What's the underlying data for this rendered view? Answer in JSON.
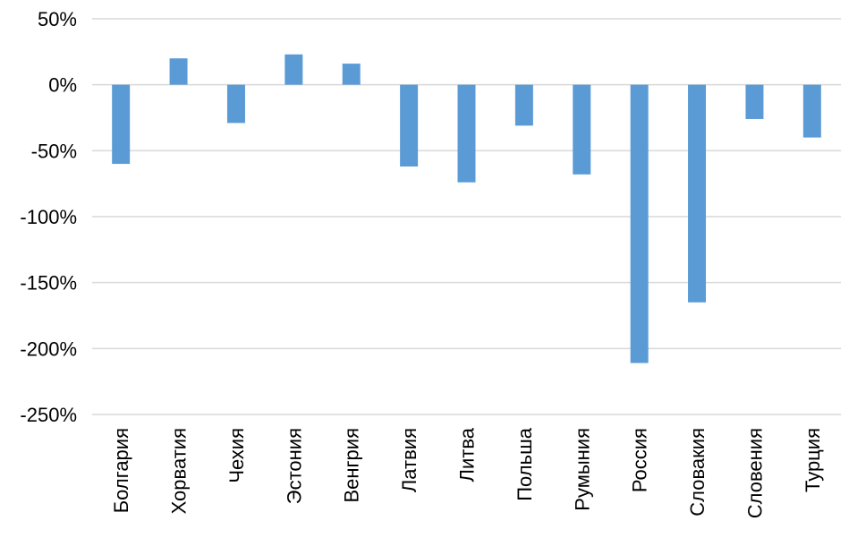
{
  "chart_data": {
    "type": "bar",
    "title": "",
    "xlabel": "",
    "ylabel": "",
    "categories": [
      "Болгария",
      "Хорватия",
      "Чехия",
      "Эстония",
      "Венгрия",
      "Латвия",
      "Литва",
      "Польша",
      "Румыния",
      "Россия",
      "Словакия",
      "Словения",
      "Турция"
    ],
    "series": [
      {
        "values": [
          -60,
          20,
          -29,
          23,
          16,
          -62,
          -74,
          -31,
          -68,
          -211,
          -165,
          -26,
          -40
        ]
      }
    ],
    "yticks": [
      "50%",
      "0%",
      "-50%",
      "-100%",
      "-150%",
      "-200%",
      "-250%"
    ],
    "ytick_values": [
      50,
      0,
      -50,
      -100,
      -150,
      -200,
      -250
    ],
    "ylim": [
      -250,
      50
    ],
    "y_format": "percent",
    "grid": true,
    "legend": "none",
    "bar_color": "#5b9bd5",
    "grid_color": "#d9d9d9"
  }
}
